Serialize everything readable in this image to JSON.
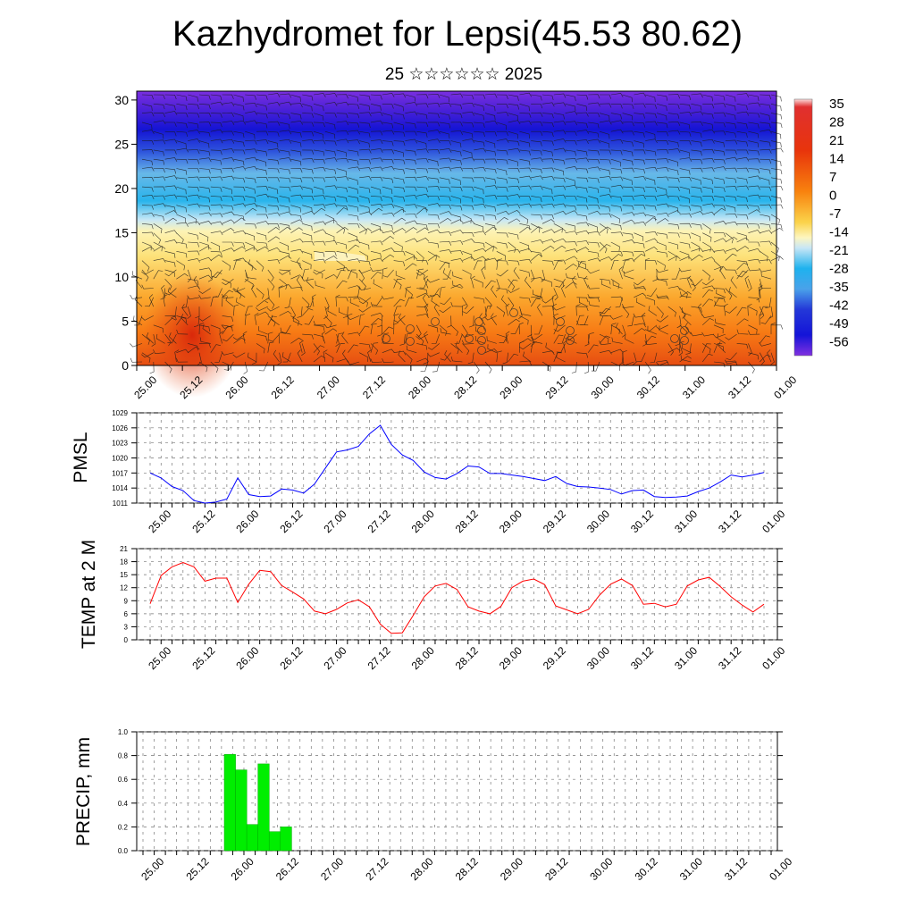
{
  "header": {
    "title": "Kazhydromet for Lepsi(45.53 80.62)",
    "subtitle": "25 ☆☆☆☆☆☆ 2025"
  },
  "colors": {
    "pmsl_line": "#0000ff",
    "temp_line": "#ff0000",
    "precip_bar": "#00ee00"
  },
  "time_labels": [
    "25.00",
    "25.12",
    "26.00",
    "26.12",
    "27.00",
    "27.12",
    "28.00",
    "28.12",
    "29.00",
    "29.12",
    "30.00",
    "30.12",
    "31.00",
    "31.12",
    "01.00"
  ],
  "chart_data": [
    {
      "type": "heatmap",
      "name": "temperature-wind-cross-section",
      "xlabel": "",
      "ylabel": "",
      "ylim": [
        0,
        31
      ],
      "yticks": [
        0,
        5,
        10,
        15,
        20,
        25,
        30
      ],
      "colorbar_labels": [
        "35",
        "28",
        "21",
        "14",
        "7",
        "0",
        "-7",
        "-14",
        "-21",
        "-28",
        "-35",
        "-42",
        "-49",
        "-56"
      ],
      "overlay": "wind barbs"
    },
    {
      "type": "line",
      "name": "pmsl",
      "ylabel": "PMSL",
      "ylim": [
        1011,
        1029
      ],
      "yticks": [
        1011,
        1014,
        1017,
        1020,
        1023,
        1026,
        1029
      ],
      "values": [
        1017,
        1016,
        1014.3,
        1013.5,
        1011.5,
        1011,
        1011.2,
        1011.8,
        1016,
        1012.7,
        1012.3,
        1012.4,
        1013.8,
        1013.6,
        1013,
        1014.8,
        1018,
        1021.2,
        1021.6,
        1022.3,
        1024.8,
        1026.5,
        1022.7,
        1020.6,
        1019.5,
        1017.2,
        1016.1,
        1015.8,
        1016.9,
        1018.4,
        1018.2,
        1016.9,
        1016.9,
        1016.6,
        1016.3,
        1015.9,
        1015.5,
        1016.3,
        1014.9,
        1014.3,
        1014.2,
        1014,
        1013.7,
        1012.8,
        1013.5,
        1013.6,
        1012.3,
        1012.1,
        1012.2,
        1012.4,
        1013.3,
        1014,
        1015.2,
        1016.6,
        1016.2,
        1016.6,
        1017.1
      ]
    },
    {
      "type": "line",
      "name": "temp-2m",
      "ylabel": "TEMP at 2 M",
      "ylim": [
        0,
        21
      ],
      "yticks": [
        0,
        3,
        6,
        9,
        12,
        15,
        18,
        21
      ],
      "values": [
        8.3,
        14.8,
        16.8,
        17.8,
        16.8,
        13.5,
        14.2,
        14.2,
        8.6,
        12.8,
        16,
        15.7,
        12.5,
        11,
        9.4,
        6.6,
        6,
        7,
        8.5,
        9.2,
        7.6,
        3.6,
        1.5,
        1.6,
        5.6,
        9.9,
        12.4,
        13,
        11.6,
        7.6,
        6.6,
        6,
        7.7,
        12,
        13.5,
        14,
        12.7,
        7.8,
        6.9,
        6,
        7,
        10.3,
        12.8,
        14,
        12.5,
        8.2,
        8.4,
        7.6,
        8.2,
        12.4,
        13.8,
        14.4,
        12.3,
        9.9,
        8,
        6.4,
        8.2
      ]
    },
    {
      "type": "bar",
      "name": "precip",
      "ylabel": "PRECIP, mm",
      "ylim": [
        0,
        1
      ],
      "yticks": [
        "0.0",
        "0.2",
        "0.4",
        "0.6",
        "0.8",
        "1.0"
      ],
      "bars": [
        {
          "step": 8,
          "value": 0.81
        },
        {
          "step": 9,
          "value": 0.68
        },
        {
          "step": 10,
          "value": 0.22
        },
        {
          "step": 11,
          "value": 0.73
        },
        {
          "step": 12,
          "value": 0.16
        },
        {
          "step": 13,
          "value": 0.2
        }
      ]
    }
  ]
}
